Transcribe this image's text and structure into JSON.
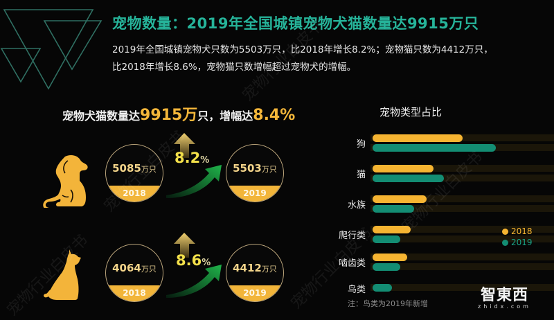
{
  "header": {
    "title": "宠物数量：2019年全国城镇宠物犬猫数量达9915万只",
    "description_line1": "2019年全国城镇宠物犬只数为5503万只，比2018年增长8.2%；宠物猫只数为4412万只，",
    "description_line2": "比2018年增长8.6%，宠物猫只数增幅超过宠物犬的增幅。"
  },
  "headline": {
    "prefix": "宠物犬猫数量达",
    "total": "9915万",
    "mid": "只，增幅达",
    "growth": "8.4%"
  },
  "dog": {
    "icon": "dog-icon",
    "y2018": {
      "value": "5085",
      "unit": "万只",
      "year": "2018"
    },
    "y2019": {
      "value": "5503",
      "unit": "万只",
      "year": "2019"
    },
    "growth_num": "8.2",
    "growth_pct": "%"
  },
  "cat": {
    "icon": "cat-icon",
    "y2018": {
      "value": "4064",
      "unit": "万只",
      "year": "2018"
    },
    "y2019": {
      "value": "4412",
      "unit": "万只",
      "year": "2019"
    },
    "growth_num": "8.6",
    "growth_pct": "%"
  },
  "chart": {
    "title": "宠物类型占比",
    "legend": [
      {
        "label": "2018",
        "color": "#f6b431"
      },
      {
        "label": "2019",
        "color": "#138d73"
      }
    ],
    "note": "注：鸟类为2019年新增"
  },
  "brand": {
    "cn": "智東西",
    "en": "zhidx.com"
  },
  "watermark": "宠物行业白皮书",
  "colors": {
    "accent_teal": "#26b49a",
    "gold": "#f5b73a",
    "bar_2019": "#138d73",
    "bar_2018": "#f6b431"
  },
  "chart_data": {
    "type": "bar",
    "orientation": "horizontal",
    "title": "宠物类型占比",
    "categories": [
      "狗",
      "猫",
      "水族",
      "爬行类",
      "啮齿类",
      "鸟类"
    ],
    "series": [
      {
        "name": "2018",
        "values": [
          52,
          35,
          31,
          22,
          20,
          null
        ]
      },
      {
        "name": "2019",
        "values": [
          71,
          41,
          24,
          16,
          16,
          11
        ]
      }
    ],
    "xlabel": "",
    "ylabel": "",
    "units": "relative share (%, estimated from bar lengths; no axis shown)",
    "legend_position": "right",
    "note": "注：鸟类为2019年新增",
    "grid": false
  }
}
